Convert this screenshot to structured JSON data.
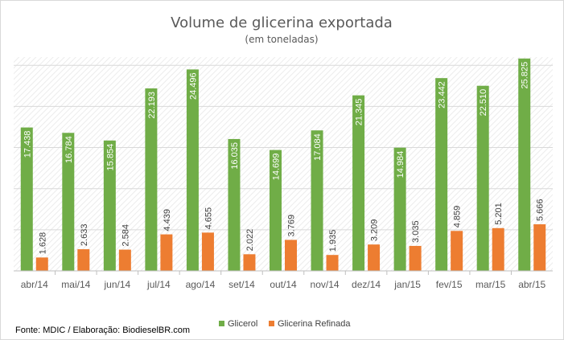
{
  "chart_data": {
    "type": "bar",
    "title": "Volume de glicerina exportada",
    "subtitle": "(em toneladas)",
    "categories": [
      "abr/14",
      "mai/14",
      "jun/14",
      "jul/14",
      "ago/14",
      "set/14",
      "out/14",
      "nov/14",
      "dez/14",
      "jan/15",
      "fev/15",
      "mar/15",
      "abr/15"
    ],
    "series": [
      {
        "name": "Glicerol",
        "color": "#70ad47",
        "values": [
          17438,
          16784,
          15854,
          22193,
          24496,
          16035,
          14699,
          17084,
          21345,
          14984,
          23442,
          22510,
          25825
        ],
        "labels": [
          "17.438",
          "16.784",
          "15.854",
          "22.193",
          "24.496",
          "16.035",
          "14.699",
          "17.084",
          "21.345",
          "14.984",
          "23.442",
          "22.510",
          "25.825"
        ]
      },
      {
        "name": "Glicerina Refinada",
        "color": "#ed7d31",
        "values": [
          1628,
          2633,
          2584,
          4439,
          4655,
          2022,
          3769,
          1935,
          3209,
          3035,
          4859,
          5201,
          5666
        ],
        "labels": [
          "1.628",
          "2.633",
          "2.584",
          "4.439",
          "4.655",
          "2.022",
          "3.769",
          "1.935",
          "3.209",
          "3.035",
          "4.859",
          "5.201",
          "5.666"
        ]
      }
    ],
    "ylim": [
      0,
      26000
    ],
    "grid": true,
    "legend": "bottom-center"
  },
  "source_note": "Fonte: MDIC / Elaboração: BiodieselBR.com"
}
